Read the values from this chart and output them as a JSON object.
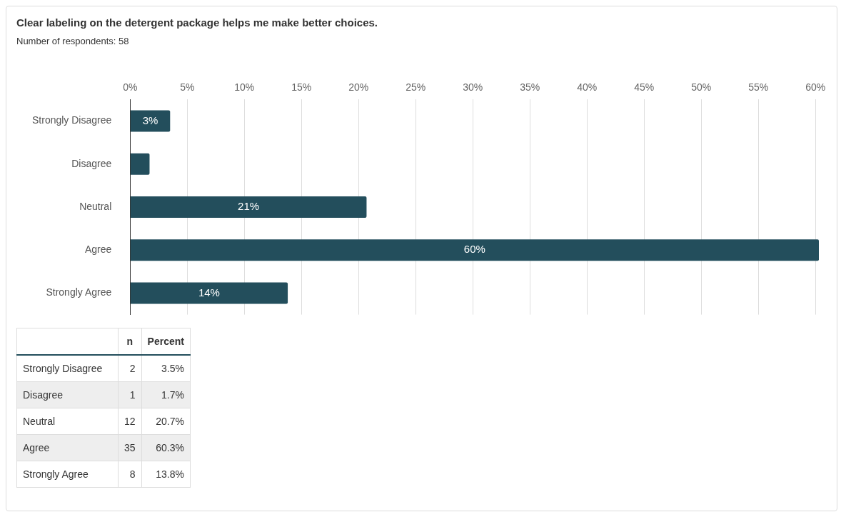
{
  "chart_data": [
    {
      "type": "bar",
      "title": "Clear labeling on the detergent package helps me make better choices.",
      "subtitle": "Number of respondents: 58",
      "orientation": "horizontal",
      "categories": [
        "Strongly Disagree",
        "Disagree",
        "Neutral",
        "Agree",
        "Strongly Agree"
      ],
      "values": [
        3.5,
        1.7,
        20.7,
        60.3,
        13.8
      ],
      "value_labels": [
        "3%",
        null,
        "21%",
        "60%",
        "14%"
      ],
      "color": "#234e5c",
      "xlim": [
        0,
        60.3
      ],
      "xticks": [
        {
          "value": 0,
          "label": "0%"
        },
        {
          "value": 5,
          "label": "5%"
        },
        {
          "value": 10,
          "label": "10%"
        },
        {
          "value": 15,
          "label": "15%"
        },
        {
          "value": 20,
          "label": "20%"
        },
        {
          "value": 25,
          "label": "25%"
        },
        {
          "value": 30,
          "label": "30%"
        },
        {
          "value": 35,
          "label": "35%"
        },
        {
          "value": 40,
          "label": "40%"
        },
        {
          "value": 45,
          "label": "45%"
        },
        {
          "value": 50,
          "label": "50%"
        },
        {
          "value": 55,
          "label": "55%"
        },
        {
          "value": 60,
          "label": "60%"
        }
      ],
      "grid": "x"
    },
    {
      "type": "other",
      "data_labels": true,
      "categories": [
        "Strongly Disagree",
        "Disagree",
        "Neutral",
        "Agree",
        "Strongly Agree"
      ],
      "series": [
        {
          "name": "n",
          "colors": [
            "#ffffff",
            "#eeeeee",
            "#ffffff",
            "#eeeeee",
            "#ffffff"
          ],
          "values": [
            2,
            1,
            12,
            35,
            8
          ]
        },
        {
          "name": "Percent",
          "colors": [
            "#ffffff",
            "#eeeeee",
            "#ffffff",
            "#eeeeee",
            "#ffffff"
          ],
          "values": [
            3.5,
            1.7,
            20.7,
            60.3,
            13.8
          ],
          "value_labels": [
            "3.5%",
            "1.7%",
            "20.7%",
            "60.3%",
            "13.8%"
          ]
        }
      ]
    }
  ]
}
